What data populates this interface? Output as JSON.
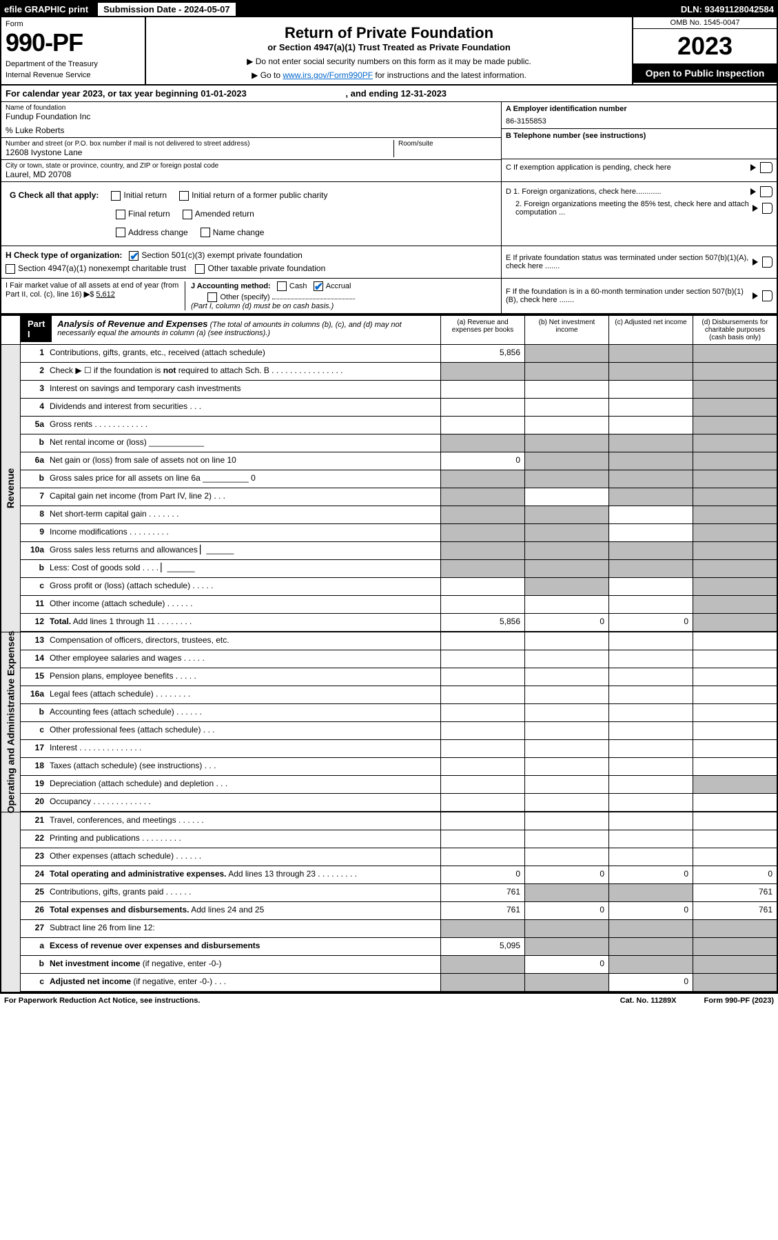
{
  "topbar": {
    "efile": "efile GRAPHIC print",
    "subdate_label": "Submission Date - 2024-05-07",
    "dln": "DLN: 93491128042584"
  },
  "header": {
    "form": "Form",
    "num": "990-PF",
    "dept": "Department of the Treasury",
    "irs": "Internal Revenue Service",
    "title": "Return of Private Foundation",
    "sub": "or Section 4947(a)(1) Trust Treated as Private Foundation",
    "note1": "▶ Do not enter social security numbers on this form as it may be made public.",
    "note2_pre": "▶ Go to ",
    "note2_link": "www.irs.gov/Form990PF",
    "note2_post": " for instructions and the latest information.",
    "omb": "OMB No. 1545-0047",
    "year": "2023",
    "inspect": "Open to Public Inspection"
  },
  "calrow": {
    "text_pre": "For calendar year 2023, or tax year beginning ",
    "begin": "01-01-2023",
    "mid": " , and ending ",
    "end": "12-31-2023"
  },
  "info": {
    "name_label": "Name of foundation",
    "name": "Fundup Foundation Inc",
    "care": "% Luke Roberts",
    "addr_label": "Number and street (or P.O. box number if mail is not delivered to street address)",
    "addr": "12608 Ivystone Lane",
    "room_label": "Room/suite",
    "city_label": "City or town, state or province, country, and ZIP or foreign postal code",
    "city": "Laurel, MD  20708",
    "a_label": "A Employer identification number",
    "a_val": "86-3155853",
    "b_label": "B Telephone number (see instructions)",
    "c_label": "C If exemption application is pending, check here",
    "d1": "D 1. Foreign organizations, check here............",
    "d2": "2. Foreign organizations meeting the 85% test, check here and attach computation ...",
    "e": "E If private foundation status was terminated under section 507(b)(1)(A), check here .......",
    "f": "F If the foundation is in a 60-month termination under section 507(b)(1)(B), check here .......",
    "g_label": "G Check all that apply:",
    "g_opts": [
      "Initial return",
      "Initial return of a former public charity",
      "Final return",
      "Amended return",
      "Address change",
      "Name change"
    ],
    "h_label": "H Check type of organization:",
    "h_opts": [
      "Section 501(c)(3) exempt private foundation",
      "Section 4947(a)(1) nonexempt charitable trust",
      "Other taxable private foundation"
    ],
    "h_checked": 0,
    "i_label": "I Fair market value of all assets at end of year (from Part II, col. (c), line 16)",
    "i_val": "5,612",
    "j_label": "J Accounting method:",
    "j_opts": [
      "Cash",
      "Accrual",
      "Other (specify)"
    ],
    "j_checked": 1,
    "j_note": "(Part I, column (d) must be on cash basis.)"
  },
  "part1": {
    "label": "Part I",
    "title": "Analysis of Revenue and Expenses",
    "note": "(The total of amounts in columns (b), (c), and (d) may not necessarily equal the amounts in column (a) (see instructions).)",
    "cols": [
      "(a) Revenue and expenses per books",
      "(b) Net investment income",
      "(c) Adjusted net income",
      "(d) Disbursements for charitable purposes (cash basis only)"
    ]
  },
  "sections": {
    "revenue": "Revenue",
    "expenses": "Operating and Administrative Expenses"
  },
  "rows": [
    {
      "n": "1",
      "d": "Contributions, gifts, grants, etc., received (attach schedule)",
      "a": "5,856",
      "bg": [
        false,
        true,
        true,
        true
      ]
    },
    {
      "n": "2",
      "d": "Check ▶ ☐ if the foundation is <b>not</b> required to attach Sch. B   .  .  .  .  .  .  .  .  .  .  .  .  .  .  .  .",
      "bg": [
        true,
        true,
        true,
        true
      ]
    },
    {
      "n": "3",
      "d": "Interest on savings and temporary cash investments",
      "bg": [
        false,
        false,
        false,
        true
      ]
    },
    {
      "n": "4",
      "d": "Dividends and interest from securities   .   .   .",
      "bg": [
        false,
        false,
        false,
        true
      ]
    },
    {
      "n": "5a",
      "d": "Gross rents   .   .   .   .   .   .   .   .   .   .   .   .",
      "bg": [
        false,
        false,
        false,
        true
      ]
    },
    {
      "n": "b",
      "d": "Net rental income or (loss) ____________",
      "bg": [
        true,
        true,
        true,
        true
      ]
    },
    {
      "n": "6a",
      "d": "Net gain or (loss) from sale of assets not on line 10",
      "a": "0",
      "bg": [
        false,
        true,
        true,
        true
      ]
    },
    {
      "n": "b",
      "d": "Gross sales price for all assets on line 6a __________ 0",
      "bg": [
        true,
        true,
        true,
        true
      ]
    },
    {
      "n": "7",
      "d": "Capital gain net income (from Part IV, line 2)   .   .   .",
      "bg": [
        true,
        false,
        true,
        true
      ]
    },
    {
      "n": "8",
      "d": "Net short-term capital gain   .   .   .   .   .   .   .",
      "bg": [
        true,
        true,
        false,
        true
      ]
    },
    {
      "n": "9",
      "d": "Income modifications   .   .   .   .   .   .   .   .   .",
      "bg": [
        true,
        true,
        false,
        true
      ]
    },
    {
      "n": "10a",
      "d": "Gross sales less returns and allowances  ▏______",
      "bg": [
        true,
        true,
        true,
        true
      ]
    },
    {
      "n": "b",
      "d": "Less: Cost of goods sold   .   .   .   .  ▏______",
      "bg": [
        true,
        true,
        true,
        true
      ]
    },
    {
      "n": "c",
      "d": "Gross profit or (loss) (attach schedule)   .   .   .   .   .",
      "bg": [
        false,
        true,
        false,
        true
      ]
    },
    {
      "n": "11",
      "d": "Other income (attach schedule)   .   .   .   .   .   .",
      "bg": [
        false,
        false,
        false,
        true
      ]
    },
    {
      "n": "12",
      "d": "<b>Total.</b> Add lines 1 through 11   .   .   .   .   .   .   .   .",
      "a": "5,856",
      "b": "0",
      "c": "0",
      "bg": [
        false,
        false,
        false,
        true
      ],
      "sect": "rev"
    },
    {
      "n": "13",
      "d": "Compensation of officers, directors, trustees, etc.",
      "bg": [
        false,
        false,
        false,
        false
      ]
    },
    {
      "n": "14",
      "d": "Other employee salaries and wages   .   .   .   .   .",
      "bg": [
        false,
        false,
        false,
        false
      ]
    },
    {
      "n": "15",
      "d": "Pension plans, employee benefits   .   .   .   .   .",
      "bg": [
        false,
        false,
        false,
        false
      ]
    },
    {
      "n": "16a",
      "d": "Legal fees (attach schedule)  .   .   .   .   .   .   .   .",
      "bg": [
        false,
        false,
        false,
        false
      ]
    },
    {
      "n": "b",
      "d": "Accounting fees (attach schedule)   .   .   .   .   .   .",
      "bg": [
        false,
        false,
        false,
        false
      ]
    },
    {
      "n": "c",
      "d": "Other professional fees (attach schedule)   .   .   .",
      "bg": [
        false,
        false,
        false,
        false
      ]
    },
    {
      "n": "17",
      "d": "Interest   .   .   .   .   .   .   .   .   .   .   .   .   .   .",
      "bg": [
        false,
        false,
        false,
        false
      ]
    },
    {
      "n": "18",
      "d": "Taxes (attach schedule) (see instructions)   .   .   .",
      "bg": [
        false,
        false,
        false,
        false
      ]
    },
    {
      "n": "19",
      "d": "Depreciation (attach schedule) and depletion   .   .   .",
      "bg": [
        false,
        false,
        false,
        true
      ]
    },
    {
      "n": "20",
      "d": "Occupancy  .   .   .   .   .   .   .   .   .   .   .   .   .",
      "bg": [
        false,
        false,
        false,
        false
      ]
    },
    {
      "n": "21",
      "d": "Travel, conferences, and meetings   .   .   .   .   .   .",
      "bg": [
        false,
        false,
        false,
        false
      ]
    },
    {
      "n": "22",
      "d": "Printing and publications   .   .   .   .   .   .   .   .   .",
      "bg": [
        false,
        false,
        false,
        false
      ]
    },
    {
      "n": "23",
      "d": "Other expenses (attach schedule)   .   .   .   .   .   .",
      "bg": [
        false,
        false,
        false,
        false
      ]
    },
    {
      "n": "24",
      "d": "<b>Total operating and administrative expenses.</b> Add lines 13 through 23   .   .   .   .   .   .   .   .   .",
      "a": "0",
      "b": "0",
      "c": "0",
      "dd": "0",
      "bg": [
        false,
        false,
        false,
        false
      ]
    },
    {
      "n": "25",
      "d": "Contributions, gifts, grants paid   .   .   .   .   .   .",
      "a": "761",
      "dd": "761",
      "bg": [
        false,
        true,
        true,
        false
      ]
    },
    {
      "n": "26",
      "d": "<b>Total expenses and disbursements.</b> Add lines 24 and 25",
      "a": "761",
      "b": "0",
      "c": "0",
      "dd": "761",
      "bg": [
        false,
        false,
        false,
        false
      ],
      "sect": "exp"
    },
    {
      "n": "27",
      "d": "Subtract line 26 from line 12:",
      "bg": [
        true,
        true,
        true,
        true
      ]
    },
    {
      "n": "a",
      "d": "<b>Excess of revenue over expenses and disbursements</b>",
      "a": "5,095",
      "bg": [
        false,
        true,
        true,
        true
      ]
    },
    {
      "n": "b",
      "d": "<b>Net investment income</b> (if negative, enter -0-)",
      "b": "0",
      "bg": [
        true,
        false,
        true,
        true
      ]
    },
    {
      "n": "c",
      "d": "<b>Adjusted net income</b> (if negative, enter -0-)   .   .   .",
      "c": "0",
      "bg": [
        true,
        true,
        false,
        true
      ]
    }
  ],
  "footer": {
    "left": "For Paperwork Reduction Act Notice, see instructions.",
    "mid": "Cat. No. 11289X",
    "right": "Form 990-PF (2023)"
  },
  "colors": {
    "grey": "#bdbdbd",
    "link": "#0066cc"
  }
}
